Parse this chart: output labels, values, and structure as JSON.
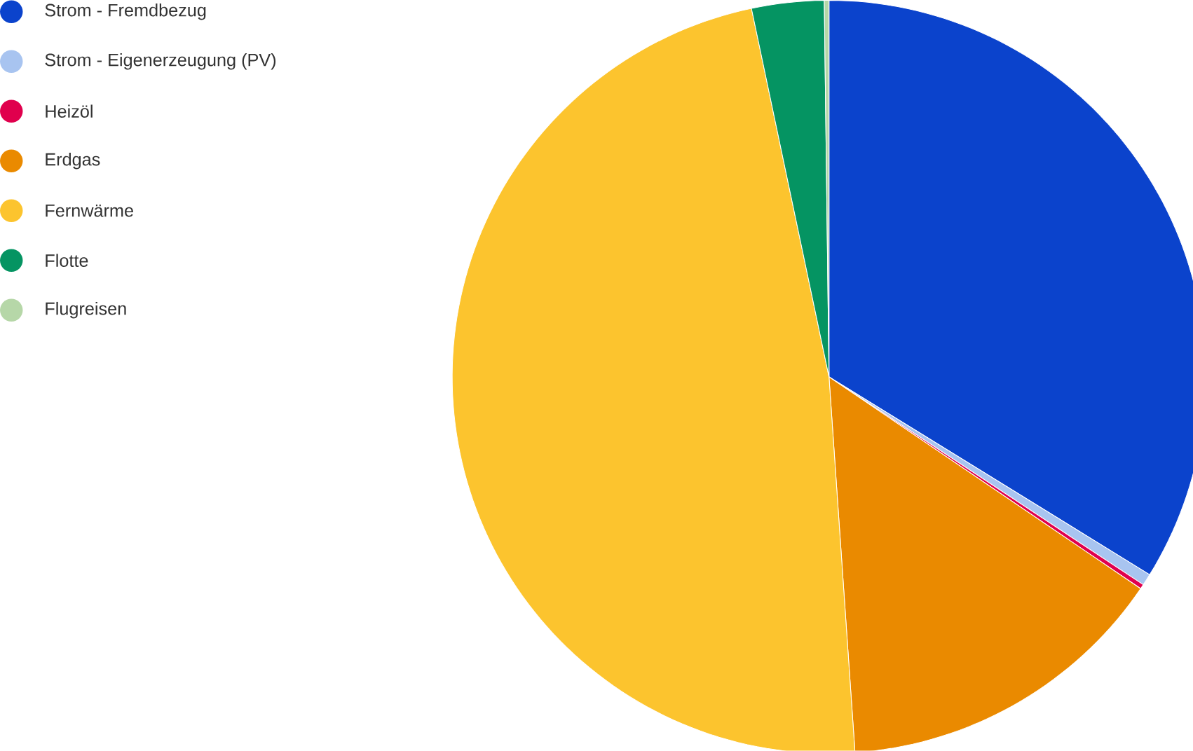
{
  "chart_data": {
    "type": "pie",
    "categories": [
      "Strom - Fremdbezug",
      "Strom - Eigenerzeugung (PV)",
      "Heizöl",
      "Erdgas",
      "Fernwärme",
      "Flotte",
      "Flugreisen"
    ],
    "values": [
      33.8,
      0.5,
      0.2,
      14.4,
      47.8,
      3.1,
      0.2
    ],
    "colors": [
      "#0b43cc",
      "#a8c4f0",
      "#e0004d",
      "#ea8a00",
      "#fcc42e",
      "#059462",
      "#b6d7a8"
    ],
    "legend": "left"
  }
}
